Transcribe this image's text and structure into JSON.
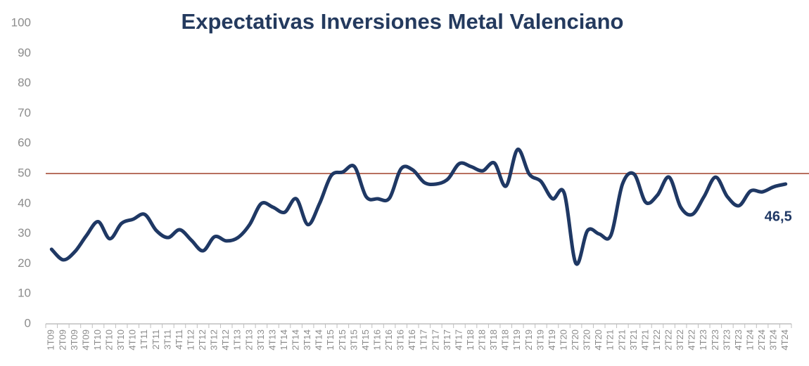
{
  "chart_data": {
    "type": "line",
    "title": "Expectativas Inversiones Metal Valenciano",
    "categories": [
      "1T09",
      "2T09",
      "3T09",
      "4T09",
      "1T10",
      "2T10",
      "3T10",
      "4T10",
      "1T11",
      "2T11",
      "3T11",
      "4T11",
      "1T12",
      "2T12",
      "3T12",
      "4T12",
      "1T13",
      "2T13",
      "3T13",
      "4T13",
      "1T14",
      "2T14",
      "3T14",
      "4T14",
      "1T15",
      "2T15",
      "3T15",
      "4T15",
      "1T16",
      "2T16",
      "3T16",
      "4T16",
      "1T17",
      "2T17",
      "3T17",
      "4T17",
      "1T18",
      "2T18",
      "3T18",
      "4T18",
      "1T19",
      "2T19",
      "3T19",
      "4T19",
      "1T20",
      "2T20",
      "3T20",
      "4T20",
      "1T21",
      "2T21",
      "3T21",
      "4T21",
      "1T22",
      "2T22",
      "3T22",
      "4T22",
      "1T23",
      "2T23",
      "3T23",
      "4T23",
      "1T24",
      "2T24",
      "3T24",
      "4T24"
    ],
    "series": [
      {
        "name": "Expectativas Inversiones",
        "color": "#1f3864",
        "values": [
          24.8,
          21.3,
          24,
          29.4,
          34,
          28.3,
          33.4,
          34.8,
          36.4,
          31,
          28.7,
          31.3,
          27.8,
          24.3,
          29,
          27.6,
          28.7,
          33,
          40,
          38.8,
          37.1,
          41.6,
          33,
          40,
          49.3,
          50.5,
          52.3,
          42.3,
          41.6,
          41.8,
          51.6,
          51.2,
          47,
          46.5,
          48.1,
          53.3,
          52.3,
          50.9,
          53.5,
          45.8,
          58,
          49.8,
          47.4,
          41.6,
          43.5,
          20.1,
          31,
          29.9,
          29.4,
          46.5,
          49.8,
          40.4,
          42.8,
          48.8,
          38.8,
          36.4,
          42.3,
          48.8,
          42.3,
          39.3,
          44.2,
          43.9,
          45.6,
          46.5
        ],
        "value_labels": [
          null,
          null,
          null,
          null,
          null,
          null,
          null,
          null,
          null,
          null,
          null,
          null,
          null,
          null,
          null,
          null,
          null,
          null,
          null,
          null,
          null,
          null,
          null,
          null,
          null,
          null,
          null,
          null,
          null,
          null,
          null,
          null,
          null,
          null,
          null,
          null,
          null,
          null,
          null,
          null,
          null,
          null,
          null,
          null,
          null,
          null,
          null,
          null,
          null,
          null,
          null,
          null,
          null,
          null,
          null,
          null,
          null,
          null,
          null,
          null,
          null,
          null,
          null,
          "46,5"
        ]
      }
    ],
    "reference_line": {
      "value": 50,
      "color": "#a0402a"
    },
    "ylim": [
      0,
      100
    ],
    "yticks": [
      0,
      10,
      20,
      30,
      40,
      50,
      60,
      70,
      80,
      90,
      100
    ],
    "grid": false
  }
}
